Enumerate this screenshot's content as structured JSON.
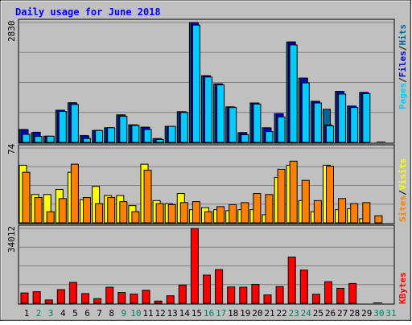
{
  "chart_data": [
    {
      "type": "bar",
      "title": "Daily usage for June 2018",
      "categories": [
        "1",
        "2",
        "3",
        "4",
        "5",
        "6",
        "7",
        "8",
        "9",
        "10",
        "11",
        "12",
        "13",
        "14",
        "15",
        "16",
        "17",
        "18",
        "19",
        "20",
        "21",
        "22",
        "23",
        "24",
        "25",
        "26",
        "27",
        "28",
        "29",
        "30",
        "31"
      ],
      "weekend_days": [
        "2",
        "3",
        "9",
        "10",
        "16",
        "17",
        "23",
        "24",
        "30",
        "31"
      ],
      "ymax_label": "2830",
      "ylim": [
        0,
        2830
      ],
      "grid": true,
      "series": [
        {
          "name": "Hits",
          "color": "#006699",
          "values": [
            305,
            230,
            146,
            760,
            935,
            162,
            279,
            345,
            649,
            414,
            359,
            89,
            378,
            724,
            2830,
            1574,
            1382,
            838,
            227,
            930,
            344,
            677,
            2371,
            1517,
            970,
            782,
            1203,
            857,
            1180,
            0,
            0
          ]
        },
        {
          "name": "Files",
          "color": "#0000CC",
          "values": [
            300,
            240,
            146,
            760,
            935,
            155,
            284,
            345,
            649,
            414,
            359,
            89,
            378,
            724,
            2830,
            1574,
            1382,
            838,
            233,
            930,
            344,
            677,
            2371,
            1517,
            970,
            415,
            1203,
            857,
            1180,
            0,
            0
          ]
        },
        {
          "name": "Pages",
          "color": "#00CCFF",
          "values": [
            190,
            140,
            146,
            730,
            895,
            90,
            279,
            345,
            615,
            400,
            305,
            67,
            378,
            705,
            2770,
            1543,
            1358,
            823,
            180,
            905,
            255,
            601,
            2300,
            1405,
            930,
            390,
            1140,
            823,
            1150,
            0,
            0
          ]
        }
      ]
    },
    {
      "type": "bar",
      "ymax_label": "74",
      "ylim": [
        0,
        74
      ],
      "series": [
        {
          "name": "Visits",
          "color": "#FFFF00",
          "values": [
            57,
            28,
            28,
            33,
            50,
            23,
            36,
            27,
            27,
            17,
            58,
            22,
            19,
            29,
            13,
            15,
            13,
            12,
            13,
            13,
            8,
            45,
            57,
            22,
            11,
            57,
            13,
            14,
            4,
            0,
            0
          ]
        },
        {
          "name": "Sites",
          "color": "#FF8000",
          "values": [
            50,
            25,
            11,
            24,
            58,
            25,
            19,
            25,
            21,
            11,
            52,
            19,
            18,
            20,
            21,
            11,
            16,
            18,
            20,
            29,
            28,
            53,
            61,
            42,
            22,
            56,
            24,
            19,
            20,
            7,
            0
          ]
        }
      ]
    },
    {
      "type": "bar",
      "ymax_label": "34012",
      "ylim": [
        0,
        34012
      ],
      "series": [
        {
          "name": "KBytes",
          "color": "#FF0000",
          "values": [
            4700,
            5250,
            1500,
            6200,
            9500,
            4400,
            2100,
            7300,
            4900,
            4200,
            5900,
            1000,
            3400,
            8300,
            34012,
            12800,
            15300,
            7400,
            7300,
            8600,
            3800,
            7600,
            21000,
            15100,
            4100,
            9800,
            6800,
            9000,
            0,
            0,
            0
          ]
        }
      ]
    }
  ],
  "colors": {
    "weekday_label": "#000000",
    "weekend_label": "#00805C",
    "title": "#0000FF",
    "plot_bg": "#C0C0C0",
    "grid": "#808080"
  }
}
